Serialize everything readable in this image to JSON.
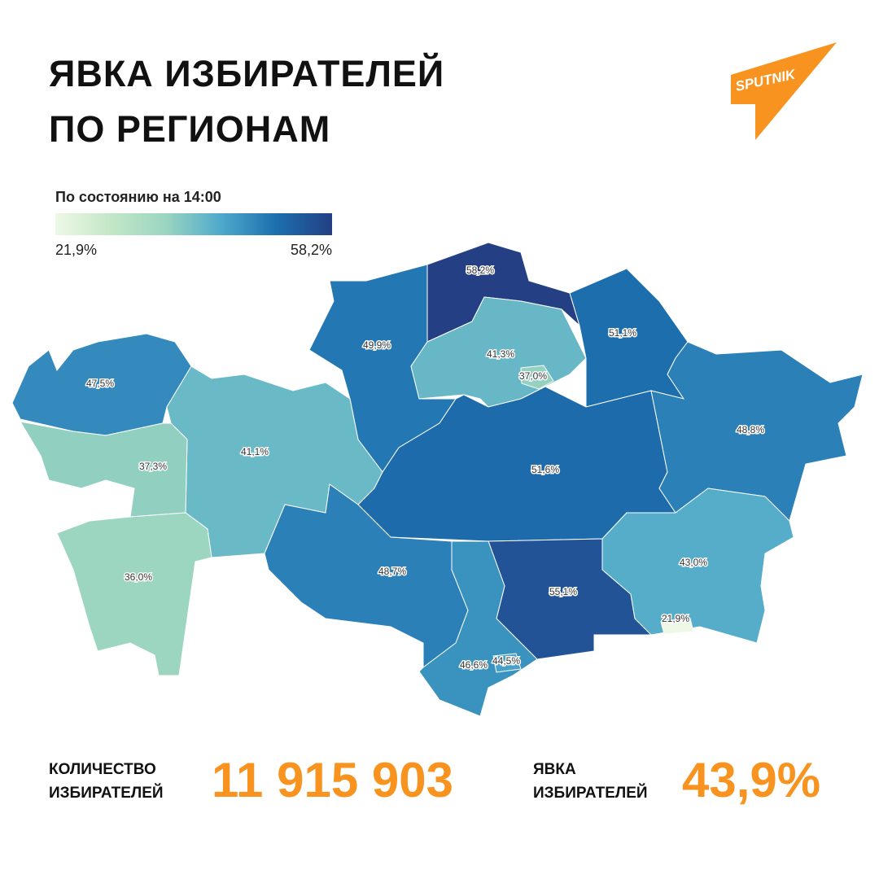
{
  "header": {
    "title_lines": [
      "ЯВКА ИЗБИРАТЕЛЕЙ",
      "ПО РЕГИОНАМ"
    ],
    "logo": "SPUTNIK"
  },
  "legend": {
    "title": "По состоянию на 14:00",
    "min": {
      "value": 21.9,
      "label": "21,9%"
    },
    "max": {
      "value": 58.2,
      "label": "58,2%"
    },
    "colors": [
      "#eef8e6",
      "#c3e7c7",
      "#9ad5c0",
      "#4ea9cb",
      "#1c6fae",
      "#243f84"
    ]
  },
  "regions": [
    {
      "value": 58.2,
      "label": "58,2%"
    },
    {
      "value": 49.9,
      "label": "49,9%"
    },
    {
      "value": 41.3,
      "label": "41,3%"
    },
    {
      "value": 37.0,
      "label": "37,0%"
    },
    {
      "value": 51.1,
      "label": "51,1%"
    },
    {
      "value": 47.5,
      "label": "47,5%"
    },
    {
      "value": 41.1,
      "label": "41,1%"
    },
    {
      "value": 37.3,
      "label": "37,3%"
    },
    {
      "value": 36.0,
      "label": "36,0%"
    },
    {
      "value": 51.6,
      "label": "51,6%"
    },
    {
      "value": 48.8,
      "label": "48,8%"
    },
    {
      "value": 48.7,
      "label": "48,7%"
    },
    {
      "value": 55.1,
      "label": "55,1%"
    },
    {
      "value": 43.0,
      "label": "43,0%"
    },
    {
      "value": 21.9,
      "label": "21,9%"
    },
    {
      "value": 46.6,
      "label": "46,6%"
    },
    {
      "value": 44.5,
      "label": "44,5%"
    }
  ],
  "footer": {
    "voters": {
      "label_lines": [
        "КОЛИЧЕСТВО",
        "ИЗБИРАТЕЛЕЙ"
      ],
      "value": "11 915 903"
    },
    "turnout": {
      "label_lines": [
        "ЯВКА",
        "ИЗБИРАТЕЛЕЙ"
      ],
      "value": "43,9%"
    }
  }
}
